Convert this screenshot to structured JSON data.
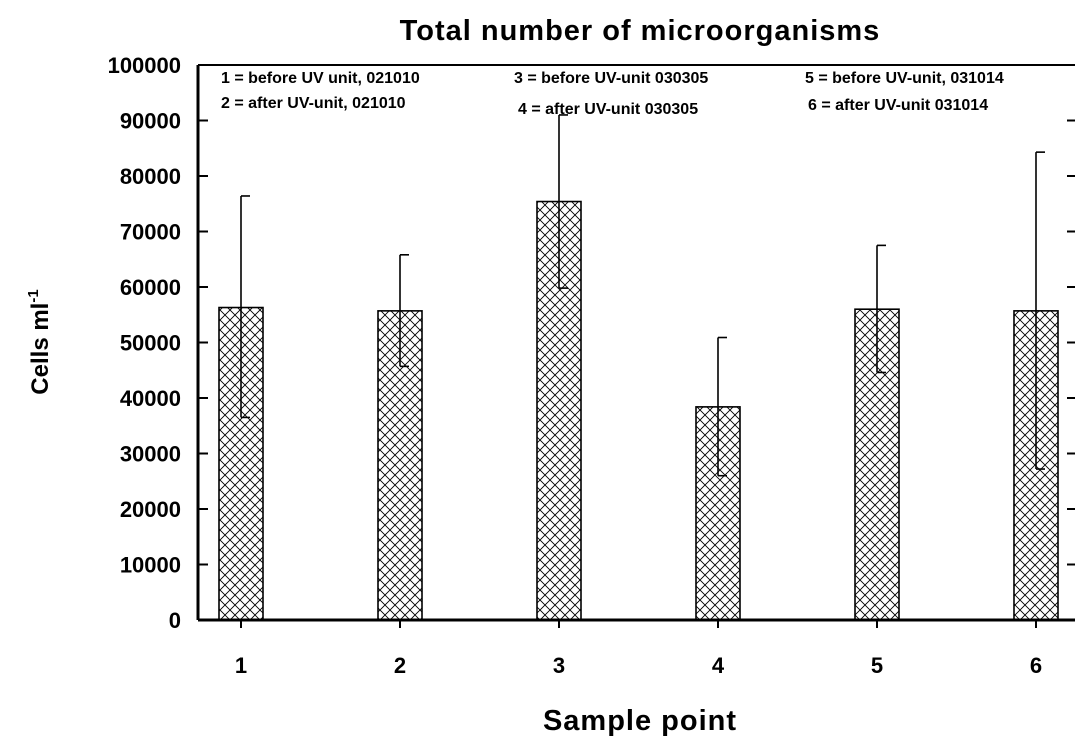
{
  "chart_data": {
    "type": "bar",
    "title": "Total number of microorganisms",
    "xlabel": "Sample point",
    "ylabel": "Cells ml",
    "ylabel_superscript": "-1",
    "categories": [
      "1",
      "2",
      "3",
      "4",
      "5",
      "6"
    ],
    "values": [
      56300,
      55700,
      75400,
      38400,
      56000,
      55700
    ],
    "error_upper": [
      76400,
      65800,
      91000,
      50900,
      67500,
      84300
    ],
    "error_lower": [
      36500,
      45700,
      59800,
      26000,
      44600,
      27200
    ],
    "ylim": [
      0,
      100000
    ],
    "yticks": [
      "0",
      "10000",
      "20000",
      "30000",
      "40000",
      "50000",
      "60000",
      "70000",
      "80000",
      "90000",
      "100000"
    ],
    "bar_pattern": "crosshatch",
    "grid": false,
    "legend": [
      "1 = before UV unit, 021010",
      "2 = after UV-unit, 021010",
      "3 = before UV-unit 030305",
      "4 = after UV-unit 030305",
      "5 = before UV-unit, 031014",
      "6 = after UV-unit 031014"
    ]
  }
}
